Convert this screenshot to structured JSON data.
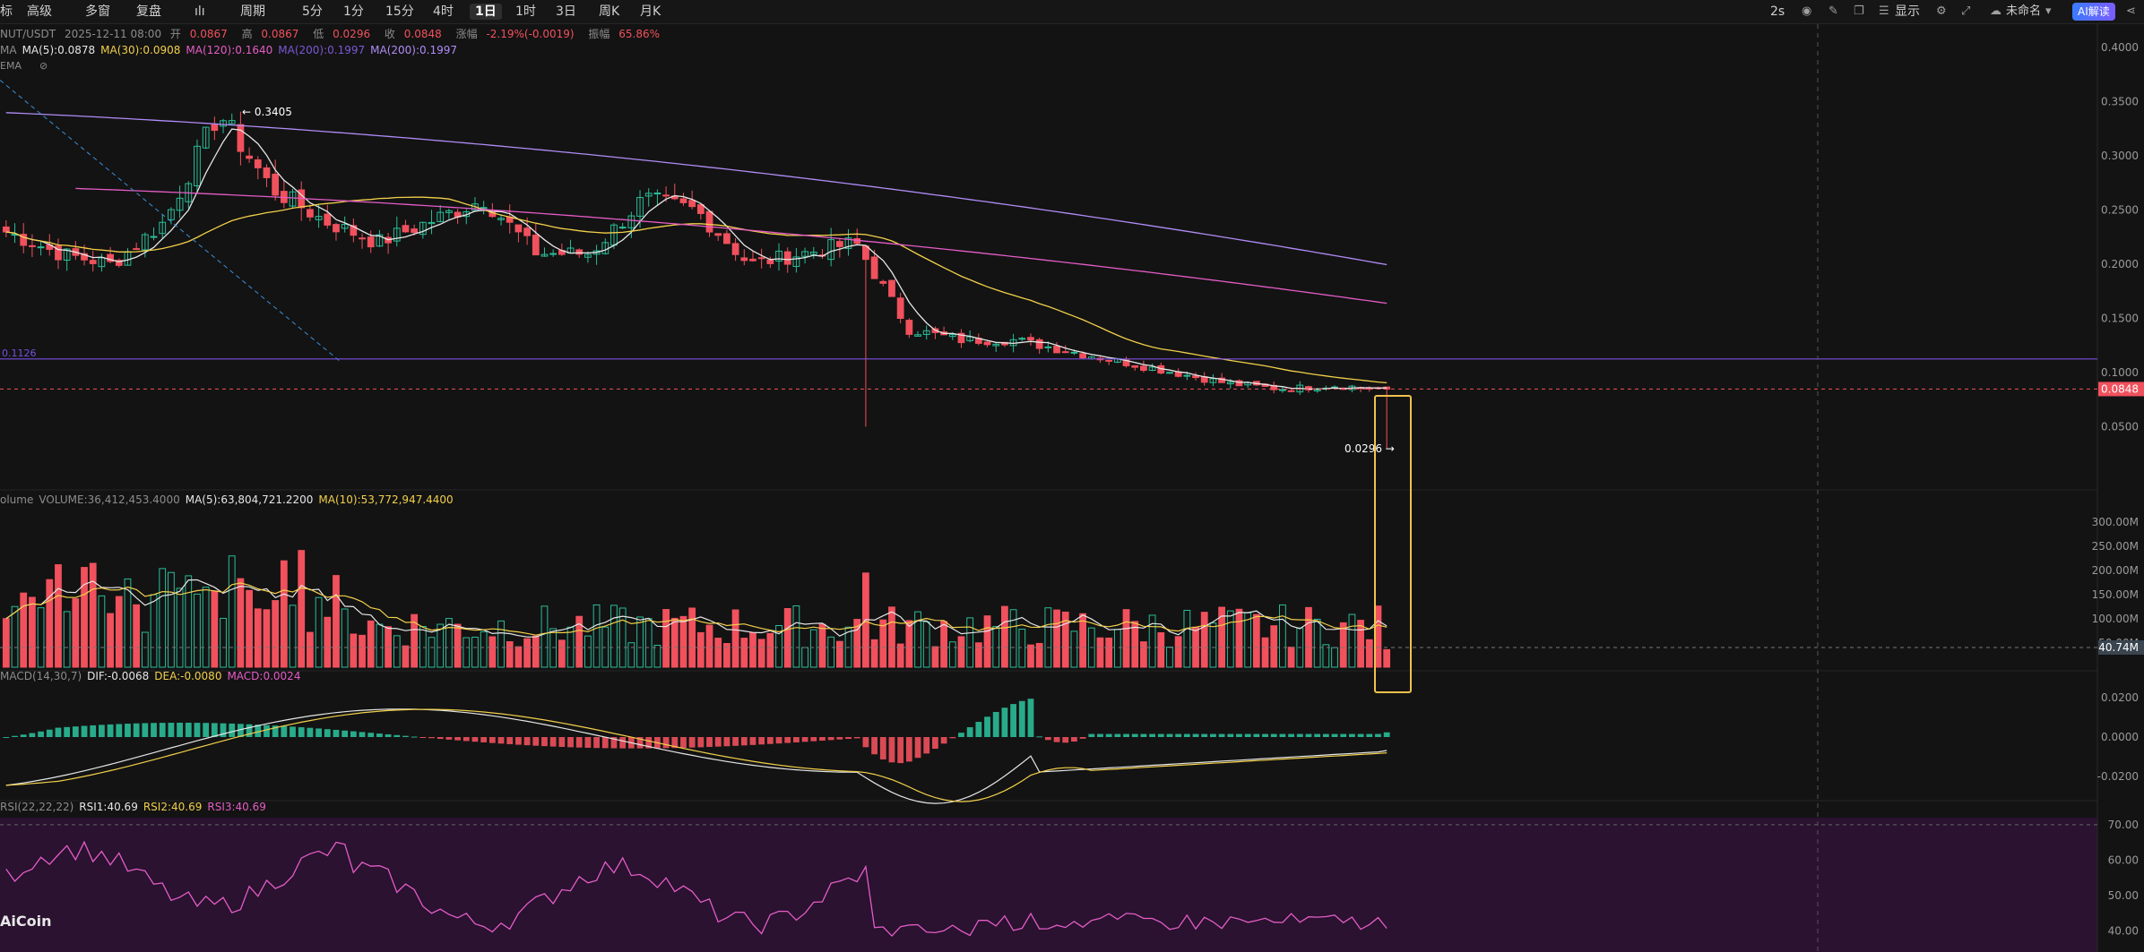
{
  "toolbar": {
    "left_items": [
      "标",
      "高级",
      "多窗",
      "复盘",
      "ılı",
      "周期",
      "5分",
      "1分",
      "15分",
      "4时",
      "1日",
      "1时",
      "3日",
      "周K",
      "月K"
    ],
    "active": "1日",
    "right_items": [
      "2s",
      "显示",
      "未命名",
      "AI解读"
    ]
  },
  "header": {
    "pair": "NUT/USDT",
    "date": "2025-12-11 08:00",
    "open_label": "开",
    "open": "0.0867",
    "high_label": "高",
    "high": "0.0867",
    "low_label": "低",
    "low": "0.0296",
    "close_label": "收",
    "close": "0.0848",
    "change_label": "涨幅",
    "change": "-2.19%(-0.0019)",
    "amp_label": "振幅",
    "amplitude": "65.86%"
  },
  "ma_legend": {
    "prefix": "MA",
    "items": [
      {
        "text": "MA(5):0.0878",
        "color": "#e6e6e6"
      },
      {
        "text": "MA(30):0.0908",
        "color": "#f2d04a"
      },
      {
        "text": "MA(120):0.1640",
        "color": "#e55cc6"
      },
      {
        "text": "MA(200):0.1997",
        "color": "#7b58d6"
      },
      {
        "text": "MA(200):0.1997",
        "color": "#b08cf7"
      }
    ],
    "ema_label": "EMA"
  },
  "price_panel": {
    "yticks": [
      "0.4000",
      "0.3500",
      "0.3000",
      "0.2500",
      "0.2000",
      "0.1500",
      "0.1000",
      "0.0500"
    ],
    "current_price": "0.0848",
    "hline_label": "0.1126",
    "high_marker": "0.3405",
    "low_marker": "0.0296"
  },
  "volume_panel": {
    "legend": [
      {
        "text": "olume",
        "color": "#8c8c8c"
      },
      {
        "text": "VOLUME:36,412,453.4000",
        "color": "#8c8c8c"
      },
      {
        "text": "MA(5):63,804,721.2200",
        "color": "#e6e6e6"
      },
      {
        "text": "MA(10):53,772,947.4400",
        "color": "#f2d04a"
      }
    ],
    "yticks": [
      "300.00M",
      "250.00M",
      "200.00M",
      "150.00M",
      "100.00M",
      "50.00M"
    ],
    "current": "40.74M"
  },
  "macd_panel": {
    "legend": [
      {
        "text": "MACD(14,30,7)",
        "color": "#8c8c8c"
      },
      {
        "text": "DIF:-0.0068",
        "color": "#e6e6e6"
      },
      {
        "text": "DEA:-0.0080",
        "color": "#f2d04a"
      },
      {
        "text": "MACD:0.0024",
        "color": "#e55cc6"
      }
    ],
    "yticks": [
      "0.0200",
      "0.0000",
      "-0.0200"
    ]
  },
  "rsi_panel": {
    "legend": [
      {
        "text": "RSI(22,22,22)",
        "color": "#8c8c8c"
      },
      {
        "text": "RSI1:40.69",
        "color": "#e6e6e6"
      },
      {
        "text": "RSI2:40.69",
        "color": "#f2d04a"
      },
      {
        "text": "RSI3:40.69",
        "color": "#e55cc6"
      }
    ],
    "yticks": [
      "70.00",
      "60.00",
      "50.00",
      "40.00"
    ]
  },
  "watermark": "AiCoin",
  "colors": {
    "up": "#2bbd98",
    "down": "#f0515d",
    "bg": "#131313",
    "highlight": "#f2c14e"
  },
  "chart_data": {
    "type": "candlestick",
    "title": "NUT/USDT 1日",
    "last_close": 0.0848,
    "period_high": 0.3405,
    "period_low": 0.0296,
    "ylim": [
      0,
      0.42
    ],
    "key_closes": [
      0.23,
      0.21,
      0.2,
      0.24,
      0.34,
      0.27,
      0.24,
      0.22,
      0.24,
      0.26,
      0.21,
      0.21,
      0.26,
      0.25,
      0.2,
      0.21,
      0.22,
      0.14,
      0.13,
      0.13,
      0.12,
      0.11,
      0.1,
      0.09,
      0.085,
      0.088,
      0.0848
    ],
    "indicators": {
      "MA5": 0.0878,
      "MA30": 0.0908,
      "MA120": 0.164,
      "MA200": 0.1997,
      "VOLUME": 36412453.4,
      "VOL_MA5": 63804721.22,
      "VOL_MA10": 53772947.44,
      "DIF": -0.0068,
      "DEA": -0.008,
      "MACD": 0.0024,
      "RSI1": 40.69,
      "RSI2": 40.69,
      "RSI3": 40.69
    }
  }
}
